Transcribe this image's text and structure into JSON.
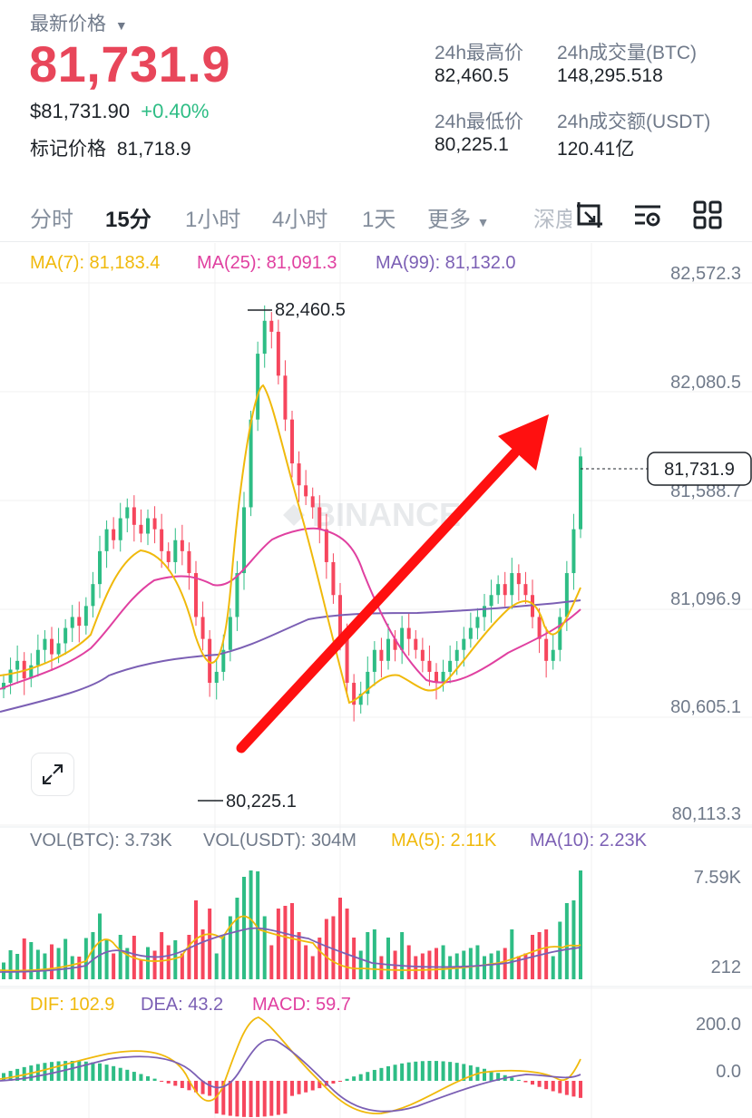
{
  "header": {
    "latest_label": "最新价格",
    "last_price": "81,731.9",
    "usd_price": "$81,731.90",
    "change_pct": "+0.40%",
    "mark_label": "标记价格",
    "mark_price": "81,718.9"
  },
  "stats": {
    "high_label": "24h最高价",
    "high_value": "82,460.5",
    "vol_btc_label": "24h成交量(BTC)",
    "vol_btc_value": "148,295.518",
    "low_label": "24h最低价",
    "low_value": "80,225.1",
    "vol_usdt_label": "24h成交额(USDT)",
    "vol_usdt_value": "120.41亿"
  },
  "tabs": [
    "分时",
    "15分",
    "1小时",
    "4小时",
    "1天",
    "更多",
    "深度"
  ],
  "active_tab": "15分",
  "toolbar_icons": [
    "crop-icon",
    "indicator-settings-icon",
    "grid-layout-icon"
  ],
  "colors": {
    "up": "#2ebd85",
    "down": "#f6465d",
    "ma7": "#f0b90b",
    "ma25": "#e040a0",
    "ma99": "#7b5fb4",
    "accent": "#e8465a"
  },
  "ma_legend": {
    "ma7": "MA(7): 81,183.4",
    "ma25": "MA(25): 81,091.3",
    "ma99": "MA(99): 81,132.0"
  },
  "price_axis": [
    "82,572.3",
    "82,080.5",
    "81,588.7",
    "81,096.9",
    "80,605.1",
    "80,113.3"
  ],
  "current_price_tag": "81,731.9",
  "high_marker": "82,460.5",
  "low_marker": "80,225.1",
  "watermark": "BINANCE",
  "vol_legend": {
    "btc": "VOL(BTC): 3.73K",
    "usdt": "VOL(USDT): 304M",
    "ma5": "MA(5): 2.11K",
    "ma10": "MA(10): 2.23K"
  },
  "vol_axis": [
    "7.59K",
    "212"
  ],
  "macd_legend": {
    "dif": "DIF: 102.9",
    "dea": "DEA: 43.2",
    "macd": "MACD: 59.7"
  },
  "macd_axis": [
    "200.0",
    "0.0"
  ],
  "chart_data": {
    "type": "candlestick",
    "ylim": [
      80113.3,
      82572.3
    ],
    "closes": [
      80700,
      80760,
      80800,
      80720,
      80780,
      80850,
      80900,
      80830,
      80880,
      80950,
      81000,
      80960,
      81050,
      81150,
      81300,
      81400,
      81350,
      81450,
      81500,
      81420,
      81380,
      81450,
      81400,
      81300,
      81250,
      81350,
      81300,
      81200,
      81000,
      80900,
      80700,
      80750,
      80850,
      81000,
      81200,
      81500,
      81900,
      82200,
      82350,
      82300,
      82100,
      81900,
      81700,
      81600,
      81550,
      81500,
      81400,
      81250,
      81100,
      80900,
      80700,
      80600,
      80650,
      80750,
      80850,
      80800,
      80900,
      80850,
      80950,
      80900,
      80850,
      80800,
      80750,
      80700,
      80750,
      80800,
      80850,
      80900,
      80950,
      81000,
      81050,
      81100,
      81150,
      81100,
      81200,
      81150,
      81100,
      81000,
      80900,
      80800,
      80850,
      81000,
      81200,
      81400,
      81731.9
    ]
  }
}
